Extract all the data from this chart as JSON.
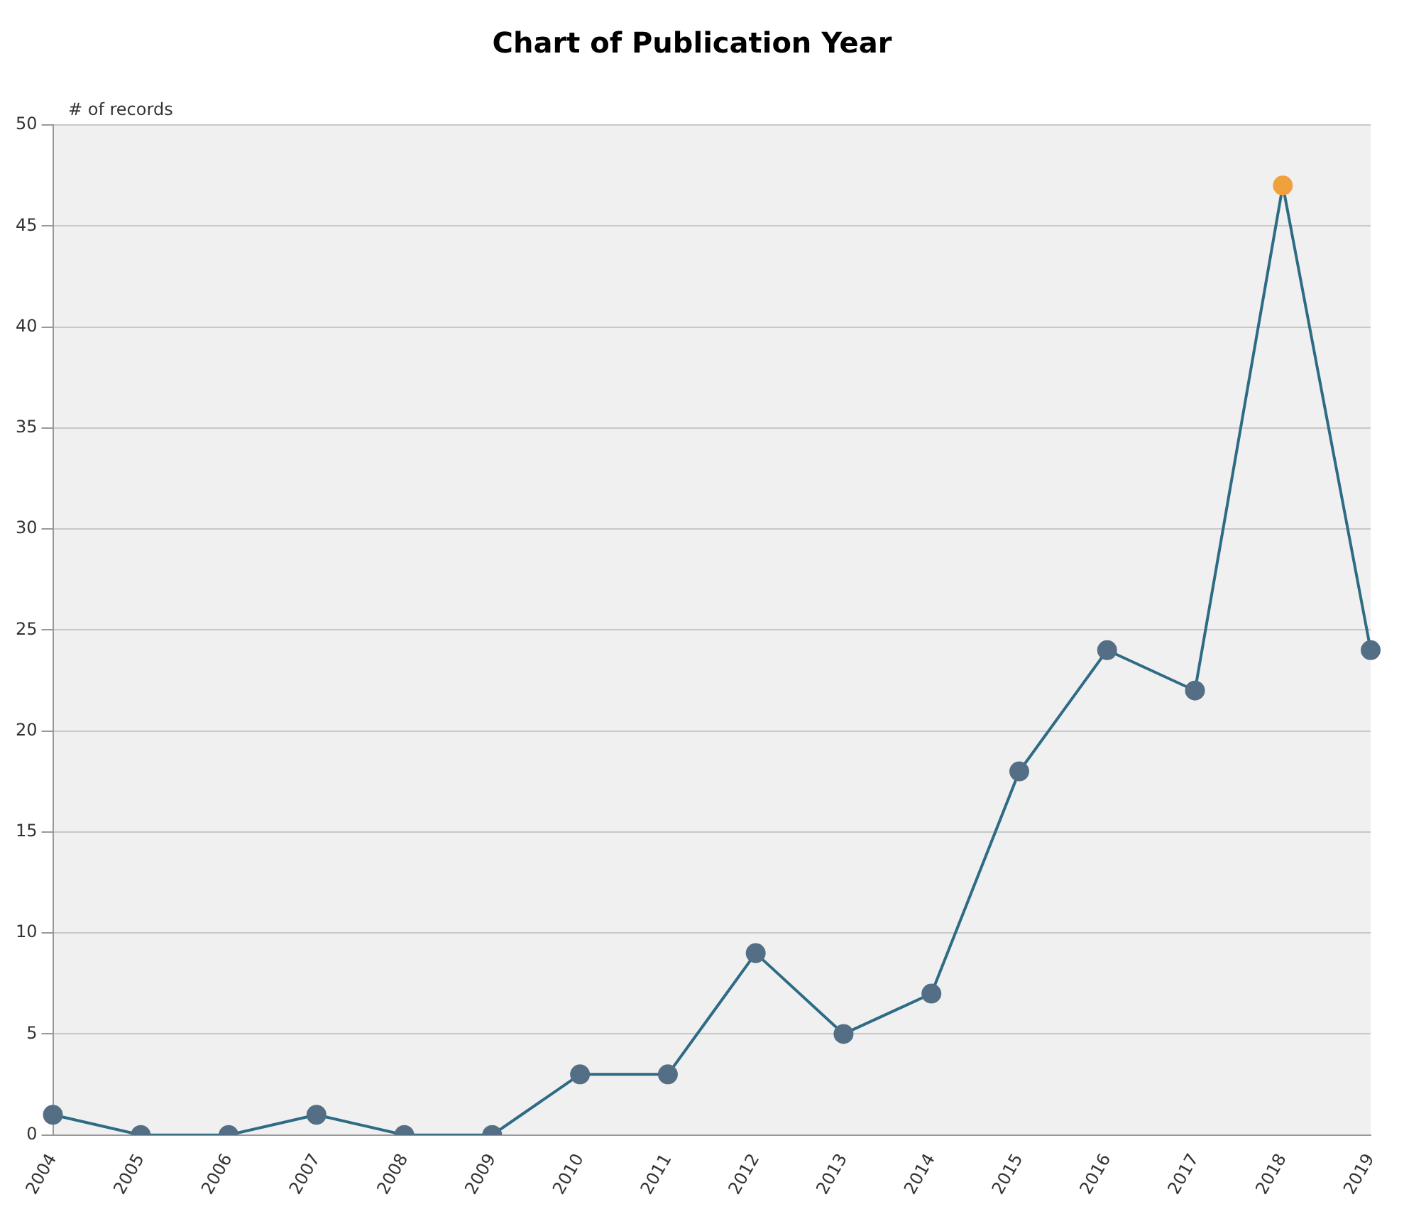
{
  "chart_data": {
    "type": "line",
    "title": "Chart of Publication Year",
    "ylabel": "# of records",
    "categories": [
      "2004",
      "2005",
      "2006",
      "2007",
      "2008",
      "2009",
      "2010",
      "2011",
      "2012",
      "2013",
      "2014",
      "2015",
      "2016",
      "2017",
      "2018",
      "2019"
    ],
    "series": [
      {
        "color": "#2e6b85",
        "colors": [
          "#546e85",
          "#546e85",
          "#546e85",
          "#546e85",
          "#546e85",
          "#546e85",
          "#546e85",
          "#546e85",
          "#546e85",
          "#546e85",
          "#546e85",
          "#546e85",
          "#546e85",
          "#546e85",
          "#f0a03c",
          "#546e85"
        ],
        "values": [
          1,
          0,
          0,
          1,
          0,
          0,
          3,
          3,
          9,
          5,
          7,
          18,
          24,
          22,
          47,
          24
        ]
      }
    ],
    "ylim": [
      0,
      50
    ],
    "yticks": [
      0,
      5,
      10,
      15,
      20,
      25,
      30,
      35,
      40,
      45,
      50
    ],
    "grid": "y",
    "legend": false,
    "marker": "circle",
    "line_style": "solid"
  }
}
